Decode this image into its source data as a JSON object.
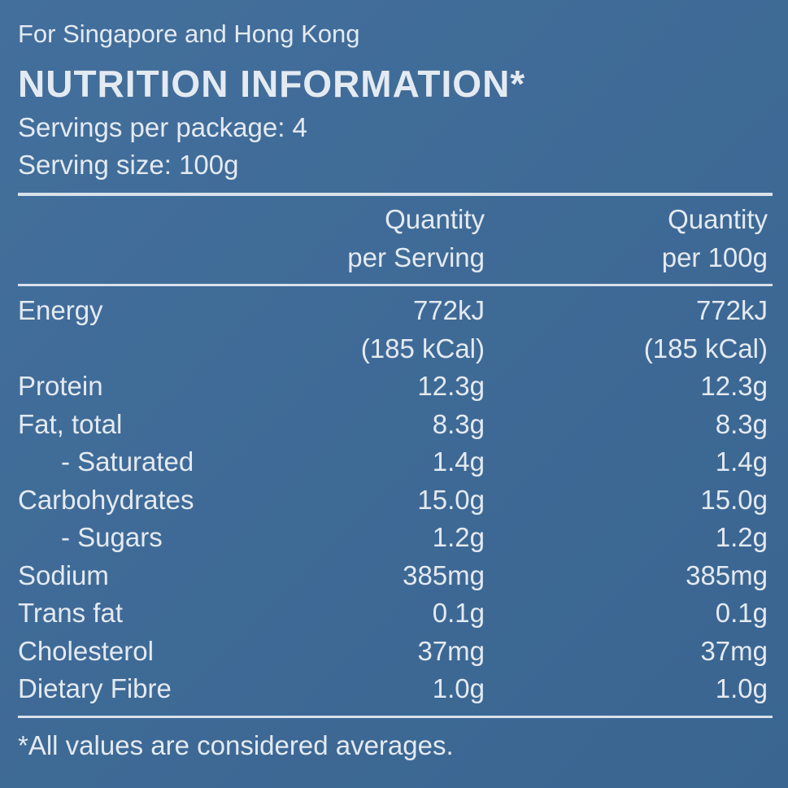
{
  "header": {
    "region": "For Singapore and Hong Kong",
    "title": "NUTRITION INFORMATION*",
    "servings": "Servings per package: 4",
    "serving_size": "Serving size: 100g"
  },
  "table": {
    "columns": [
      [
        "Quantity",
        "per Serving"
      ],
      [
        "Quantity",
        "per 100g"
      ]
    ],
    "rows": [
      [
        "Energy",
        [
          "772kJ",
          "(185 kCal)"
        ],
        [
          "772kJ",
          "(185 kCal)"
        ]
      ],
      [
        "Protein",
        "12.3g",
        "12.3g"
      ],
      [
        "Fat, total",
        "8.3g",
        "8.3g"
      ],
      [
        "- Saturated",
        "1.4g",
        "1.4g"
      ],
      [
        "Carbohydrates",
        "15.0g",
        "15.0g"
      ],
      [
        "- Sugars",
        "1.2g",
        "1.2g"
      ],
      [
        "Sodium",
        "385mg",
        "385mg"
      ],
      [
        "Trans fat",
        "0.1g",
        "0.1g"
      ],
      [
        "Cholesterol",
        "37mg",
        "37mg"
      ],
      [
        "Dietary Fibre",
        "1.0g",
        "1.0g"
      ]
    ]
  },
  "footnote": "*All values are considered averages."
}
